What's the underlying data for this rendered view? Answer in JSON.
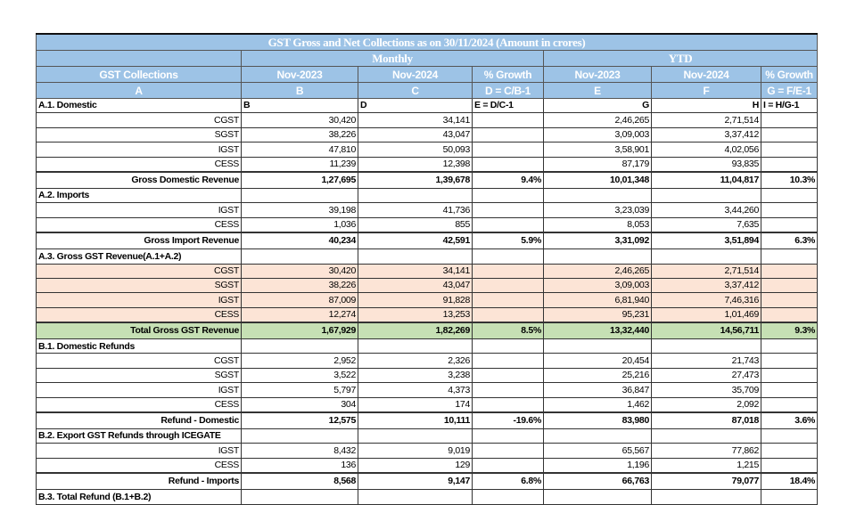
{
  "title": "GST Gross and Net Collections as on  30/11/2024 (Amount in crores)",
  "group_headers": {
    "monthly": "Monthly",
    "ytd": "YTD"
  },
  "columns": [
    "GST Collections",
    "Nov-2023",
    "Nov-2024",
    "% Growth",
    "Nov-2023",
    "Nov-2024",
    "% Growth"
  ],
  "column_codes": [
    "A",
    "B",
    "C",
    "D = C/B-1",
    "E",
    "F",
    "G = F/E-1"
  ],
  "ref_row": [
    "A.1. Domestic",
    "B",
    "D",
    "E = D/C-1",
    "G",
    "H",
    "I = H/G-1"
  ],
  "colors": {
    "header": "#9dc3e6",
    "peach": "#fce4d6",
    "green": "#c6e0b4"
  },
  "rows": [
    {
      "type": "r",
      "cells": [
        "CGST",
        "30,420",
        "34,141",
        "",
        "2,46,265",
        "2,71,514",
        ""
      ]
    },
    {
      "type": "r",
      "cells": [
        "SGST",
        "38,226",
        "43,047",
        "",
        "3,09,003",
        "3,37,412",
        ""
      ]
    },
    {
      "type": "r",
      "cells": [
        "IGST",
        "47,810",
        "50,093",
        "",
        "3,58,901",
        "4,02,056",
        ""
      ]
    },
    {
      "type": "r",
      "cells": [
        "CESS",
        "11,239",
        "12,398",
        "",
        "87,179",
        "93,835",
        ""
      ]
    },
    {
      "type": "t",
      "cells": [
        "Gross Domestic Revenue",
        "1,27,695",
        "1,39,678",
        "9.4%",
        "10,01,348",
        "11,04,817",
        "10.3%"
      ]
    },
    {
      "type": "sec",
      "cells": [
        "A.2. Imports",
        "",
        "",
        "",
        "",
        "",
        ""
      ]
    },
    {
      "type": "r",
      "cells": [
        "IGST",
        "39,198",
        "41,736",
        "",
        "3,23,039",
        "3,44,260",
        ""
      ]
    },
    {
      "type": "r",
      "cells": [
        "CESS",
        "1,036",
        "855",
        "",
        "8,053",
        "7,635",
        ""
      ]
    },
    {
      "type": "t",
      "cells": [
        "Gross Import Revenue",
        "40,234",
        "42,591",
        "5.9%",
        "3,31,092",
        "3,51,894",
        "6.3%"
      ]
    },
    {
      "type": "sec",
      "cells": [
        "A.3. Gross GST Revenue(A.1+A.2)",
        "",
        "",
        "",
        "",
        "",
        ""
      ]
    },
    {
      "type": "r",
      "shade": "peach",
      "cells": [
        "CGST",
        "30,420",
        "34,141",
        "",
        "2,46,265",
        "2,71,514",
        ""
      ]
    },
    {
      "type": "r",
      "shade": "peach",
      "cells": [
        "SGST",
        "38,226",
        "43,047",
        "",
        "3,09,003",
        "3,37,412",
        ""
      ]
    },
    {
      "type": "r",
      "shade": "peach",
      "cells": [
        "IGST",
        "87,009",
        "91,828",
        "",
        "6,81,940",
        "7,46,316",
        ""
      ]
    },
    {
      "type": "r",
      "shade": "peach",
      "cells": [
        "CESS",
        "12,274",
        "13,253",
        "",
        "95,231",
        "1,01,469",
        ""
      ]
    },
    {
      "type": "t",
      "shade": "green",
      "cells": [
        "Total Gross GST Revenue",
        "1,67,929",
        "1,82,269",
        "8.5%",
        "13,32,440",
        "14,56,711",
        "9.3%"
      ]
    },
    {
      "type": "sec",
      "cells": [
        "B.1. Domestic Refunds",
        "",
        "",
        "",
        "",
        "",
        ""
      ]
    },
    {
      "type": "r",
      "cells": [
        "CGST",
        "2,952",
        "2,326",
        "",
        "20,454",
        "21,743",
        ""
      ]
    },
    {
      "type": "r",
      "cells": [
        "SGST",
        "3,522",
        "3,238",
        "",
        "25,216",
        "27,473",
        ""
      ]
    },
    {
      "type": "r",
      "cells": [
        "IGST",
        "5,797",
        "4,373",
        "",
        "36,847",
        "35,709",
        ""
      ]
    },
    {
      "type": "r",
      "cells": [
        "CESS",
        "304",
        "174",
        "",
        "1,462",
        "2,092",
        ""
      ]
    },
    {
      "type": "t",
      "cells": [
        "Refund - Domestic",
        "12,575",
        "10,111",
        "-19.6%",
        "83,980",
        "87,018",
        "3.6%"
      ]
    },
    {
      "type": "sec",
      "cells": [
        "B.2. Export GST Refunds through ICEGATE",
        "",
        "",
        "",
        "",
        "",
        ""
      ]
    },
    {
      "type": "r",
      "cells": [
        "IGST",
        "8,432",
        "9,019",
        "",
        "65,567",
        "77,862",
        ""
      ]
    },
    {
      "type": "r",
      "cells": [
        "CESS",
        "136",
        "129",
        "",
        "1,196",
        "1,215",
        ""
      ]
    },
    {
      "type": "t",
      "cells": [
        "Refund - Imports",
        "8,568",
        "9,147",
        "6.8%",
        "66,763",
        "79,077",
        "18.4%"
      ]
    },
    {
      "type": "sec",
      "cells": [
        "B.3. Total Refund (B.1+B.2)",
        "",
        "",
        "",
        "",
        "",
        ""
      ]
    }
  ]
}
